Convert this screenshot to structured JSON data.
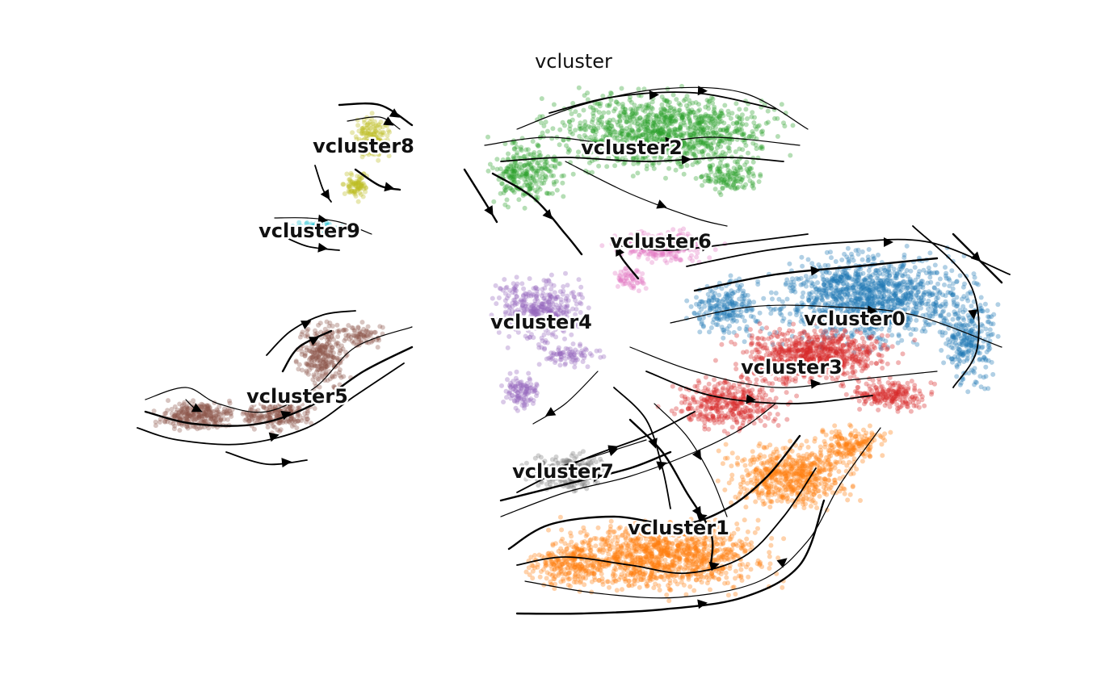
{
  "chart_data": {
    "type": "scatter",
    "title": "vcluster",
    "xlabel": "",
    "ylabel": "",
    "grid": false,
    "legend": "on data",
    "streamlines": true,
    "clusters": [
      {
        "name": "vcluster0",
        "color": "#1f77b4"
      },
      {
        "name": "vcluster1",
        "color": "#ff7f0e"
      },
      {
        "name": "vcluster2",
        "color": "#2ca02c"
      },
      {
        "name": "vcluster3",
        "color": "#d62728"
      },
      {
        "name": "vcluster4",
        "color": "#9467bd"
      },
      {
        "name": "vcluster5",
        "color": "#8c564b"
      },
      {
        "name": "vcluster6",
        "color": "#e377c2"
      },
      {
        "name": "vcluster7",
        "color": "#7f7f7f"
      },
      {
        "name": "vcluster8",
        "color": "#bcbd22"
      },
      {
        "name": "vcluster9",
        "color": "#17becf"
      }
    ]
  }
}
